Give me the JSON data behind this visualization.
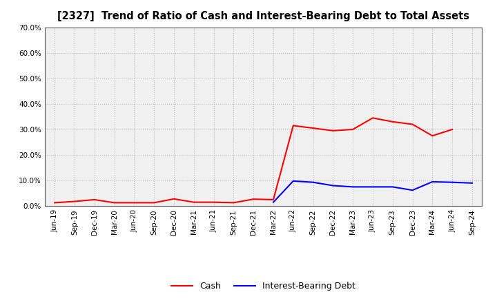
{
  "title": "[2327]  Trend of Ratio of Cash and Interest-Bearing Debt to Total Assets",
  "labels": [
    "Jun-19",
    "Sep-19",
    "Dec-19",
    "Mar-20",
    "Jun-20",
    "Sep-20",
    "Dec-20",
    "Mar-21",
    "Jun-21",
    "Sep-21",
    "Dec-21",
    "Mar-22",
    "Jun-22",
    "Sep-22",
    "Dec-22",
    "Mar-23",
    "Jun-23",
    "Sep-23",
    "Dec-23",
    "Mar-24",
    "Jun-24",
    "Sep-24"
  ],
  "cash": [
    0.013,
    0.018,
    0.025,
    0.013,
    0.013,
    0.013,
    0.028,
    0.015,
    0.015,
    0.013,
    0.027,
    0.025,
    0.315,
    0.305,
    0.295,
    0.3,
    0.345,
    0.33,
    0.32,
    0.275,
    0.3,
    null
  ],
  "interest_bearing_debt": [
    null,
    null,
    null,
    null,
    null,
    null,
    null,
    null,
    null,
    null,
    null,
    0.015,
    0.098,
    0.093,
    0.08,
    0.075,
    0.075,
    0.075,
    0.062,
    0.095,
    0.093,
    0.09
  ],
  "cash_color": "#ff0000",
  "debt_color": "#0000ff",
  "ylim": [
    0.0,
    0.7
  ],
  "yticks": [
    0.0,
    0.1,
    0.2,
    0.3,
    0.4,
    0.5,
    0.6,
    0.7
  ],
  "plot_bg_color": "#f0f0f0",
  "background_color": "#ffffff",
  "grid_color": "#bbbbbb",
  "legend_cash": "Cash",
  "legend_debt": "Interest-Bearing Debt",
  "title_fontsize": 10.5,
  "tick_fontsize": 7.5,
  "legend_fontsize": 9
}
